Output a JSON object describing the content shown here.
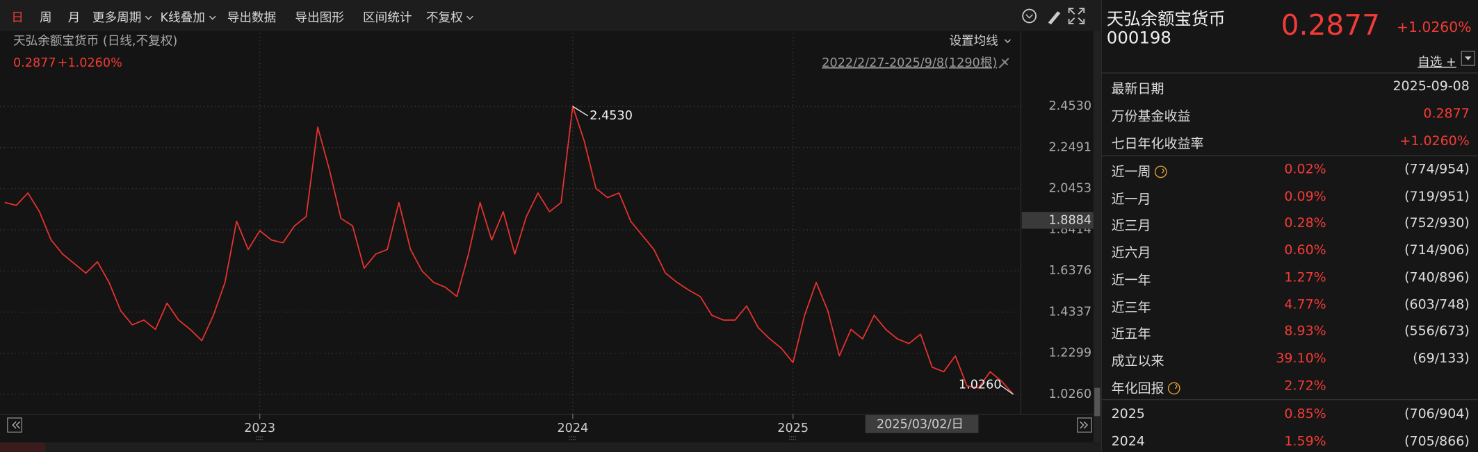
{
  "toolbar": {
    "items": [
      "日",
      "周",
      "月",
      "更多周期",
      "K线叠加",
      "导出数据",
      "导出图形",
      "区间统计",
      "不复权"
    ],
    "dropdown": [
      false,
      false,
      false,
      true,
      true,
      false,
      false,
      false,
      true
    ],
    "active": "日"
  },
  "chart_header": {
    "name": "天弘余额宝货币 (日线,不复权)",
    "price": "0.2877",
    "change": "+1.0260%",
    "ma_setting": "设置均线",
    "range": "2022/2/27-2025/9/8(1290根)"
  },
  "chart_data": {
    "type": "line",
    "color": "#e8332f",
    "categories": [
      null,
      null,
      null,
      null,
      null,
      null,
      null,
      null,
      null,
      null,
      null,
      null,
      null,
      null,
      null,
      null,
      null,
      null,
      null,
      null,
      null,
      null,
      "2023",
      null,
      null,
      null,
      null,
      null,
      null,
      null,
      null,
      null,
      null,
      null,
      null,
      null,
      null,
      null,
      null,
      null,
      null,
      null,
      null,
      null,
      null,
      null,
      null,
      null,
      null,
      "2024",
      null,
      null,
      null,
      null,
      null,
      null,
      null,
      null,
      null,
      null,
      null,
      null,
      null,
      null,
      null,
      null,
      null,
      null,
      "2025",
      null,
      null,
      null,
      null,
      null,
      null,
      null,
      null,
      null,
      null,
      null,
      null,
      null,
      null,
      null,
      null,
      null,
      null,
      null
    ],
    "values": [
      1.977,
      1.963,
      2.024,
      1.931,
      1.791,
      1.721,
      1.674,
      1.627,
      1.683,
      1.581,
      1.441,
      1.371,
      1.394,
      1.348,
      1.478,
      1.394,
      1.348,
      1.292,
      1.418,
      1.581,
      1.884,
      1.744,
      1.837,
      1.791,
      1.777,
      1.861,
      1.907,
      2.35,
      2.14,
      1.898,
      1.861,
      1.651,
      1.721,
      1.744,
      1.977,
      1.744,
      1.637,
      1.581,
      1.557,
      1.511,
      1.721,
      1.977,
      1.791,
      1.931,
      1.721,
      1.907,
      2.024,
      1.931,
      1.977,
      2.453,
      2.28,
      2.047,
      2.001,
      2.024,
      1.884,
      1.814,
      1.744,
      1.627,
      1.581,
      1.543,
      1.511,
      1.418,
      1.394,
      1.394,
      1.464,
      1.357,
      1.301,
      1.254,
      1.184,
      1.418,
      1.581,
      1.441,
      1.217,
      1.348,
      1.301,
      1.418,
      1.348,
      1.301,
      1.278,
      1.324,
      1.161,
      1.138,
      1.217,
      1.068,
      1.058,
      1.138,
      1.091,
      1.026
    ],
    "value_labels": [
      null,
      null,
      null,
      null,
      null,
      null,
      null,
      null,
      null,
      null,
      null,
      null,
      null,
      null,
      null,
      null,
      null,
      null,
      null,
      null,
      null,
      null,
      null,
      null,
      null,
      null,
      null,
      null,
      null,
      null,
      null,
      null,
      null,
      null,
      null,
      null,
      null,
      null,
      null,
      null,
      null,
      null,
      null,
      null,
      null,
      null,
      null,
      null,
      null,
      "2.4530",
      null,
      null,
      null,
      null,
      null,
      null,
      null,
      null,
      null,
      null,
      null,
      null,
      null,
      null,
      null,
      null,
      null,
      null,
      null,
      null,
      null,
      null,
      null,
      null,
      null,
      null,
      null,
      null,
      null,
      null,
      null,
      null,
      null,
      null,
      null,
      null,
      null,
      "1.0260"
    ],
    "ylim": [
      0.937,
      2.817
    ],
    "yticks": [
      {
        "value": 1.026,
        "label": "1.0260"
      },
      {
        "value": 1.2299,
        "label": "1.2299"
      },
      {
        "value": 1.4337,
        "label": "1.4337"
      },
      {
        "value": 1.6376,
        "label": "1.6376"
      },
      {
        "value": 1.8414,
        "label": "1.8414"
      },
      {
        "value": 2.0453,
        "label": "2.0453"
      },
      {
        "value": 2.2491,
        "label": "2.2491"
      },
      {
        "value": 2.453,
        "label": "2.4530"
      }
    ],
    "grid": true,
    "price_marker": 1.8884,
    "crosshair_label": "2025/03/02/日"
  },
  "side_panel": {
    "name": "天弘余额宝货币",
    "code": "000198",
    "price": "0.2877",
    "change": "+1.0260%",
    "watch_button": "自选 +",
    "info": [
      {
        "label": "最新日期",
        "value": "2025-09-08",
        "red": false
      },
      {
        "label": "万份基金收益",
        "value": "0.2877",
        "red": true
      },
      {
        "label": "七日年化收益率",
        "value": "+1.0260%",
        "red": true
      }
    ],
    "periods": [
      {
        "label": "近一周",
        "return": "0.02%",
        "rank": "(774/954)",
        "help": true
      },
      {
        "label": "近一月",
        "return": "0.09%",
        "rank": "(719/951)",
        "help": false
      },
      {
        "label": "近三月",
        "return": "0.28%",
        "rank": "(752/930)",
        "help": false
      },
      {
        "label": "近六月",
        "return": "0.60%",
        "rank": "(714/906)",
        "help": false
      },
      {
        "label": "近一年",
        "return": "1.27%",
        "rank": "(740/896)",
        "help": false
      },
      {
        "label": "近三年",
        "return": "4.77%",
        "rank": "(603/748)",
        "help": false
      },
      {
        "label": "近五年",
        "return": "8.93%",
        "rank": "(556/673)",
        "help": false
      },
      {
        "label": "成立以来",
        "return": "39.10%",
        "rank": "(69/133)",
        "help": false
      },
      {
        "label": "年化回报",
        "return": "2.72%",
        "rank": null,
        "help": true
      }
    ],
    "years": [
      {
        "label": "2025",
        "return": "0.85%",
        "rank": "(706/904)"
      },
      {
        "label": "2024",
        "return": "1.59%",
        "rank": "(705/866)"
      }
    ]
  }
}
